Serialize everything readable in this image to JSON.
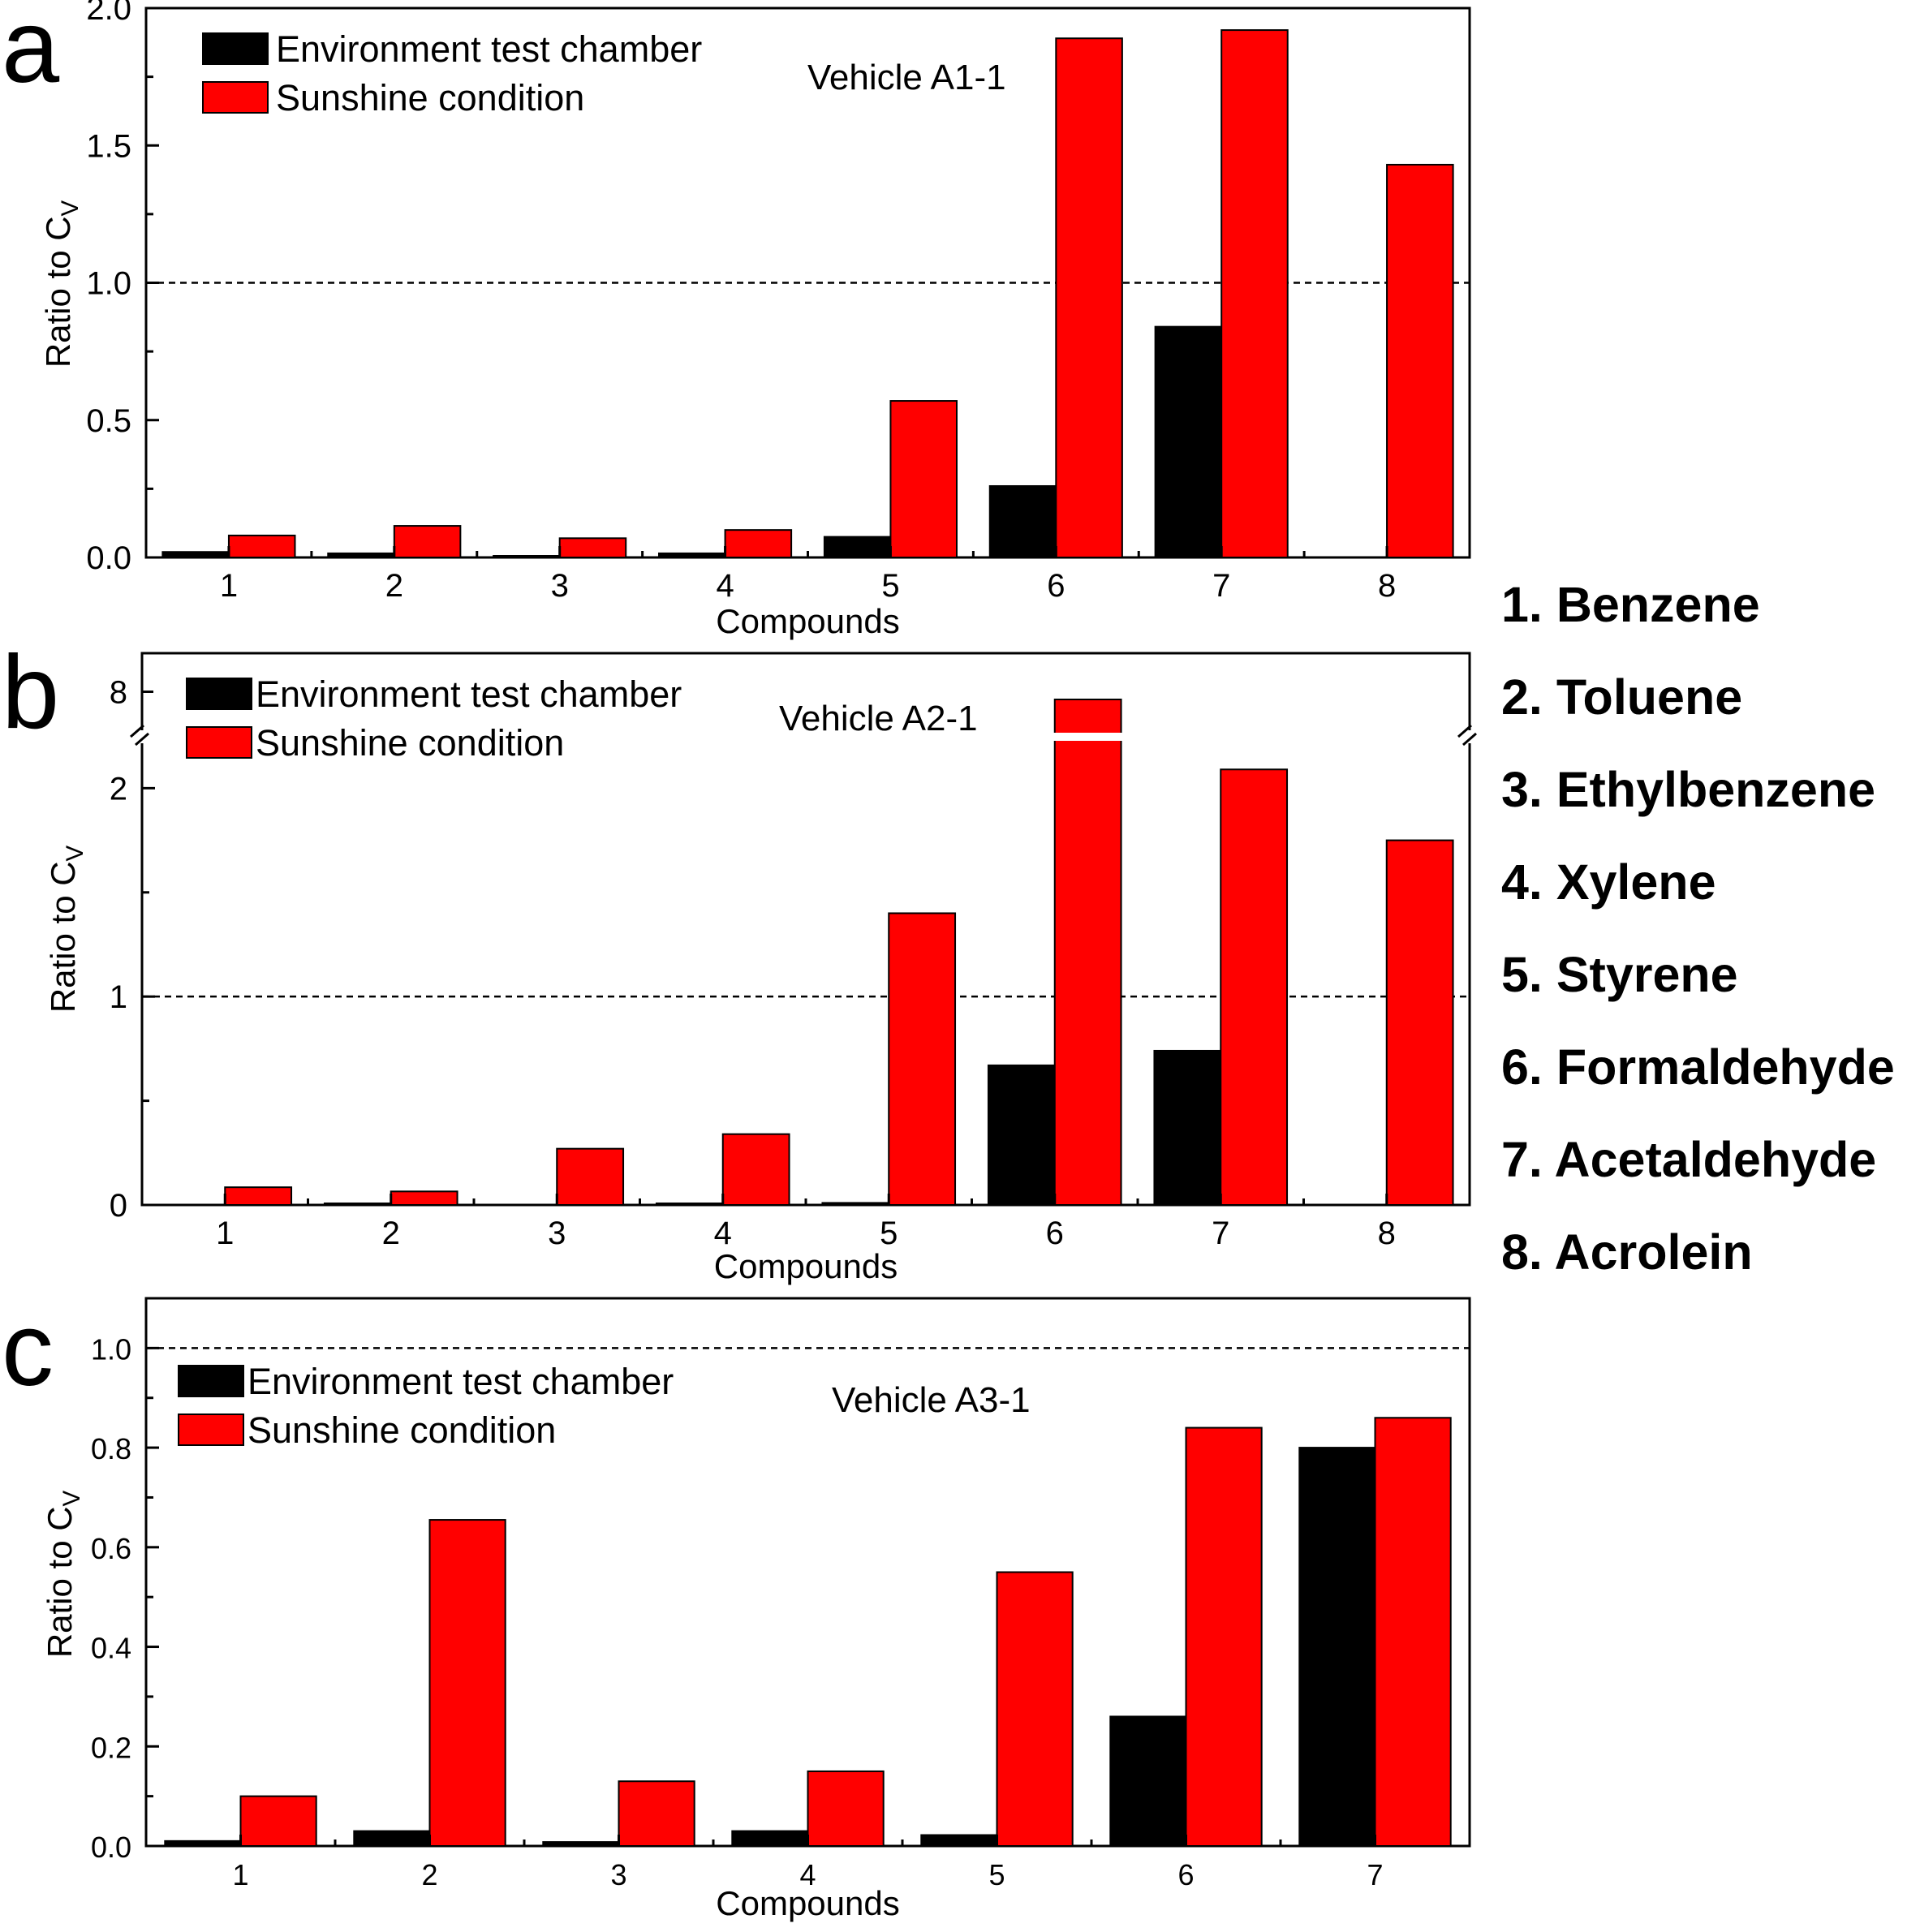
{
  "compound_legend": [
    "1. Benzene",
    "2. Toluene",
    "3. Ethylbenzene",
    "4. Xylene",
    "5. Styrene",
    "6. Formaldehyde",
    "7. Acetaldehyde",
    "8. Acrolein"
  ],
  "chart_data": [
    {
      "panel": "a",
      "type": "bar",
      "title": "Vehicle A1-1",
      "xlabel": "Compounds",
      "ylabel": "Ratio to C",
      "ylabel_sub": "V",
      "categories": [
        "1",
        "2",
        "3",
        "4",
        "5",
        "6",
        "7",
        "8"
      ],
      "ylim": [
        0,
        2.0
      ],
      "yticks": [
        0.0,
        0.5,
        1.0,
        1.5,
        2.0
      ],
      "ytick_labels": [
        "0.0",
        "0.5",
        "1.0",
        "1.5",
        "2.0"
      ],
      "reference_line": 1.0,
      "legend": [
        "Environment test chamber",
        "Sunshine condition"
      ],
      "legend_position": "top-left",
      "series": [
        {
          "name": "Environment test chamber",
          "color": "#000000",
          "values": [
            0.02,
            0.015,
            0.005,
            0.015,
            0.075,
            0.26,
            0.84,
            0.0
          ]
        },
        {
          "name": "Sunshine condition",
          "color": "#ff0000",
          "values": [
            0.08,
            0.115,
            0.07,
            0.1,
            0.57,
            1.89,
            1.92,
            1.43
          ]
        }
      ]
    },
    {
      "panel": "b",
      "type": "bar",
      "title": "Vehicle A2-1",
      "xlabel": "Compounds",
      "ylabel": "Ratio to C",
      "ylabel_sub": "V",
      "categories": [
        "1",
        "2",
        "3",
        "4",
        "5",
        "6",
        "7",
        "8"
      ],
      "ylim": [
        0,
        2.2
      ],
      "yticks": [
        0,
        1,
        2
      ],
      "ytick_labels": [
        "0",
        "1",
        "2"
      ],
      "axis_break": {
        "lower_max": 2.2,
        "upper_range": [
          7.5,
          8.5
        ],
        "upper_tick": 8,
        "upper_tick_label": "8"
      },
      "reference_line": 1,
      "legend": [
        "Environment test chamber",
        "Sunshine condition"
      ],
      "legend_position": "top-left",
      "series": [
        {
          "name": "Environment test chamber",
          "color": "#000000",
          "values": [
            0.0,
            0.005,
            0.0,
            0.005,
            0.01,
            0.67,
            0.74,
            0.0
          ]
        },
        {
          "name": "Sunshine condition",
          "color": "#ff0000",
          "values": [
            0.085,
            0.065,
            0.27,
            0.34,
            1.4,
            7.9,
            2.09,
            1.75
          ]
        }
      ]
    },
    {
      "panel": "c",
      "type": "bar",
      "title": "Vehicle A3-1",
      "xlabel": "Compounds",
      "ylabel": "Ratio to C",
      "ylabel_sub": "V",
      "categories": [
        "1",
        "2",
        "3",
        "4",
        "5",
        "6",
        "7"
      ],
      "ylim": [
        0,
        1.1
      ],
      "yticks": [
        0.0,
        0.2,
        0.4,
        0.6,
        0.8,
        1.0
      ],
      "ytick_labels": [
        "0.0",
        "0.2",
        "0.4",
        "0.6",
        "0.8",
        "1.0"
      ],
      "reference_line": 1.0,
      "legend": [
        "Environment test chamber",
        "Sunshine condition"
      ],
      "legend_position": "top-left",
      "series": [
        {
          "name": "Environment test chamber",
          "color": "#000000",
          "values": [
            0.01,
            0.03,
            0.008,
            0.03,
            0.022,
            0.26,
            0.8
          ]
        },
        {
          "name": "Sunshine condition",
          "color": "#ff0000",
          "values": [
            0.1,
            0.655,
            0.13,
            0.15,
            0.55,
            0.84,
            0.86
          ]
        }
      ]
    }
  ]
}
